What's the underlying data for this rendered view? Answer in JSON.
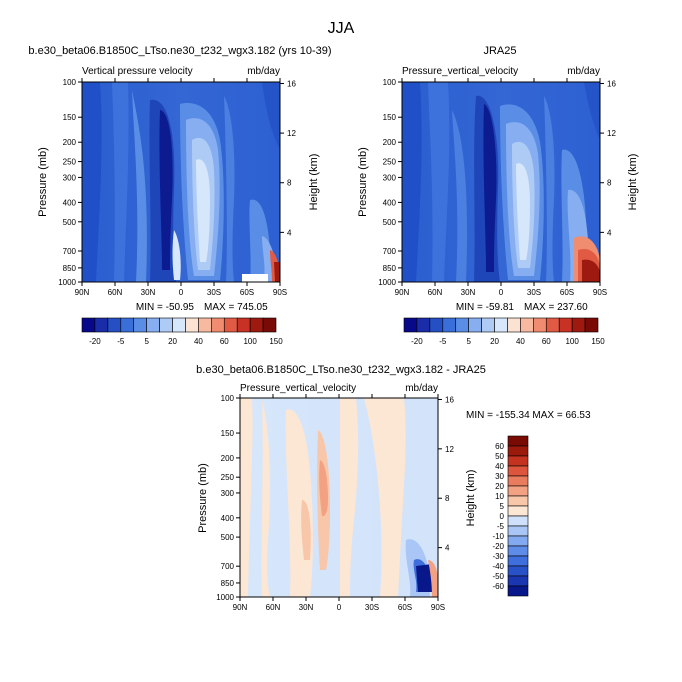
{
  "figure_title": "JJA",
  "y_axis": {
    "left_label": "Pressure (mb)",
    "right_label": "Height (km)",
    "pressure_ticks": [
      "100",
      "150",
      "200",
      "250",
      "300",
      "400",
      "500",
      "700",
      "850",
      "1000"
    ],
    "height_ticks": [
      "16",
      "12",
      "8",
      "4"
    ]
  },
  "x_axis": {
    "ticks": [
      "90N",
      "60N",
      "30N",
      "0",
      "30S",
      "60S",
      "90S"
    ]
  },
  "colors": {
    "model_obs_scale": [
      "#08088a",
      "#1a2ca8",
      "#2550c4",
      "#3a6ed8",
      "#5a8ee6",
      "#86aef0",
      "#aecbf6",
      "#d6e6fb",
      "#fbe2d2",
      "#f7b9a0",
      "#f08c70",
      "#e05a44",
      "#c83224",
      "#9e1a10",
      "#7a0a06"
    ],
    "diff_scale": [
      "#08188a",
      "#1a36b0",
      "#2a52c8",
      "#3f6fdc",
      "#5f8ce8",
      "#83aaf0",
      "#a9c6f6",
      "#cfe0fa",
      "#fce6d4",
      "#f8c6a8",
      "#f2a282",
      "#e97c5e",
      "#dc553c",
      "#c4331f",
      "#9c1a0c",
      "#7a0a04"
    ]
  },
  "chart_data": [
    {
      "type": "contour",
      "title": "b.e30_beta06.B1850C_LTso.ne30_t232_wgx3.182 (yrs 10-39)",
      "variable": "Vertical pressure velocity",
      "units": "mb/day",
      "ylabel": "Pressure (mb)",
      "y2label": "Height (km)",
      "min_label": "MIN = -50.95",
      "max_label": "MAX = 745.05",
      "colorbar_labels": [
        "-20",
        "-5",
        "5",
        "20",
        "40",
        "60",
        "100",
        "150"
      ]
    },
    {
      "type": "contour",
      "title": "JRA25",
      "variable": "Pressure_vertical_velocity",
      "units": "mb/day",
      "ylabel": "Pressure (mb)",
      "y2label": "Height (km)",
      "min_label": "MIN = -59.81",
      "max_label": "MAX = 237.60",
      "colorbar_labels": [
        "-20",
        "-5",
        "5",
        "20",
        "40",
        "60",
        "100",
        "150"
      ]
    },
    {
      "type": "contour",
      "title": "b.e30_beta06.B1850C_LTso.ne30_t232_wgx3.182 - JRA25",
      "variable": "Pressure_vertical_velocity",
      "units": "mb/day",
      "ylabel": "Pressure (mb)",
      "y2label": "Height (km)",
      "minmax_label": "MIN = -155.34  MAX = 66.53",
      "colorbar_labels": [
        "60",
        "50",
        "40",
        "30",
        "20",
        "10",
        "5",
        "0",
        "-5",
        "-10",
        "-20",
        "-30",
        "-40",
        "-50",
        "-60"
      ]
    }
  ]
}
